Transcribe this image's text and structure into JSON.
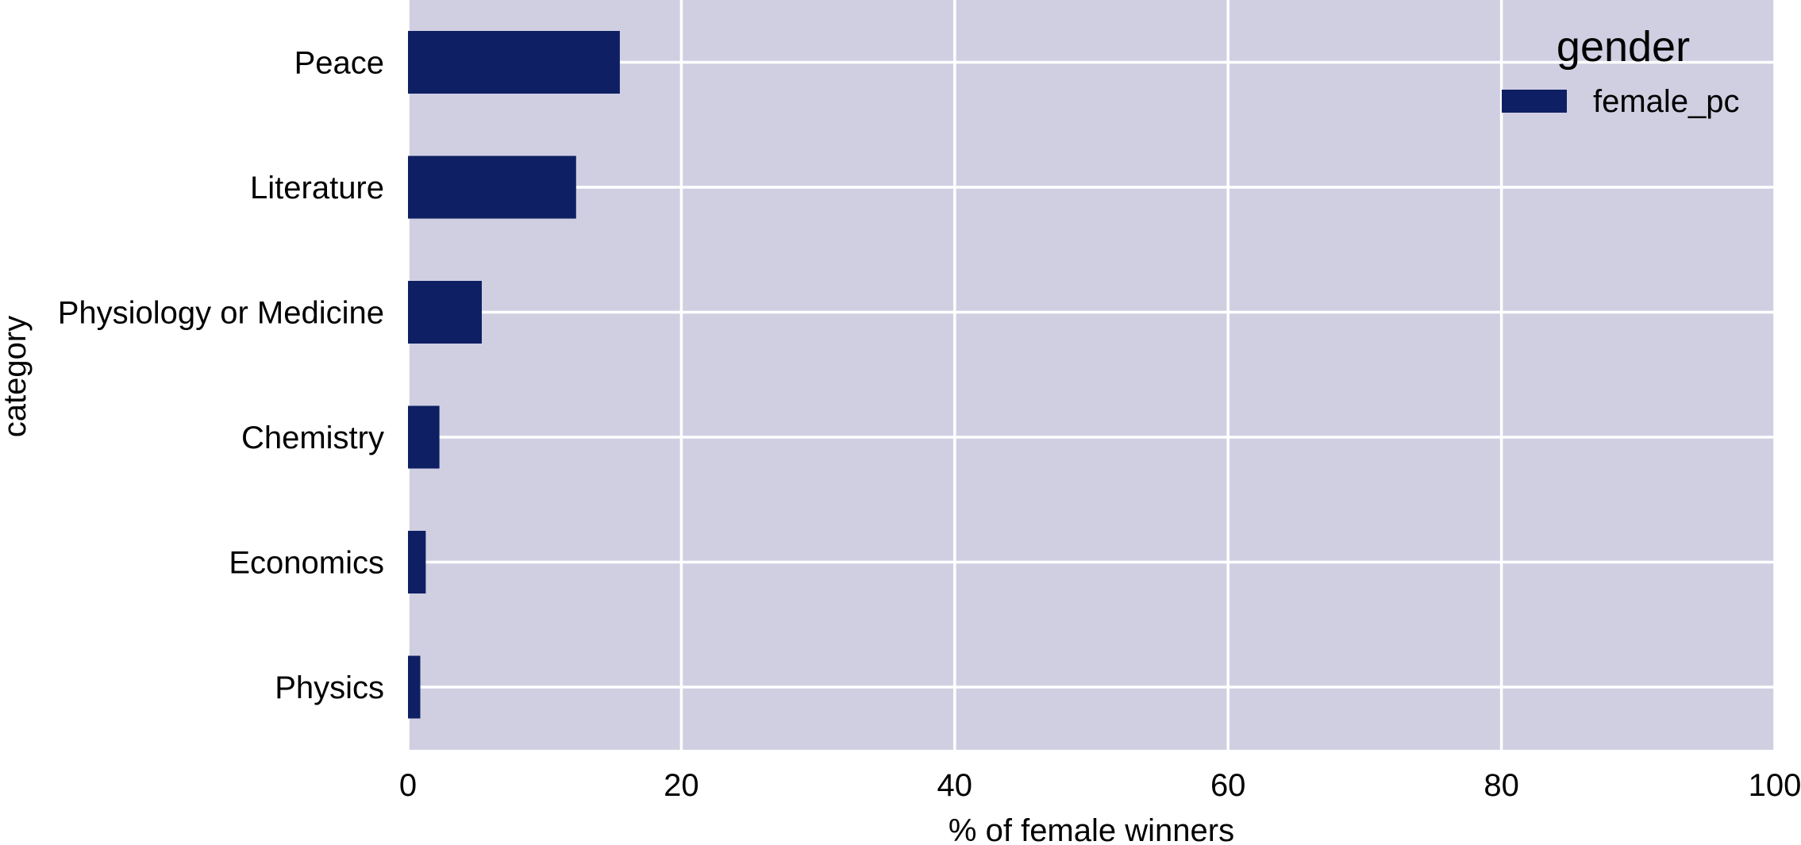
{
  "colors": {
    "plot_background": "#d0cfe2",
    "grid": "#ffffff",
    "bar": "#0e2063",
    "text": "#000000"
  },
  "chart_data": {
    "type": "bar",
    "orientation": "horizontal",
    "categories": [
      "Peace",
      "Literature",
      "Physiology or Medicine",
      "Chemistry",
      "Economics",
      "Physics"
    ],
    "series": [
      {
        "name": "female_pc",
        "values": [
          15.5,
          12.3,
          5.4,
          2.3,
          1.3,
          0.9
        ]
      }
    ],
    "xlabel": "% of female winners",
    "ylabel": "category",
    "xlim": [
      0,
      100
    ],
    "xticks": [
      0,
      20,
      40,
      60,
      80,
      100
    ],
    "grid": true,
    "legend": {
      "title": "gender",
      "placement": "top-right"
    }
  }
}
